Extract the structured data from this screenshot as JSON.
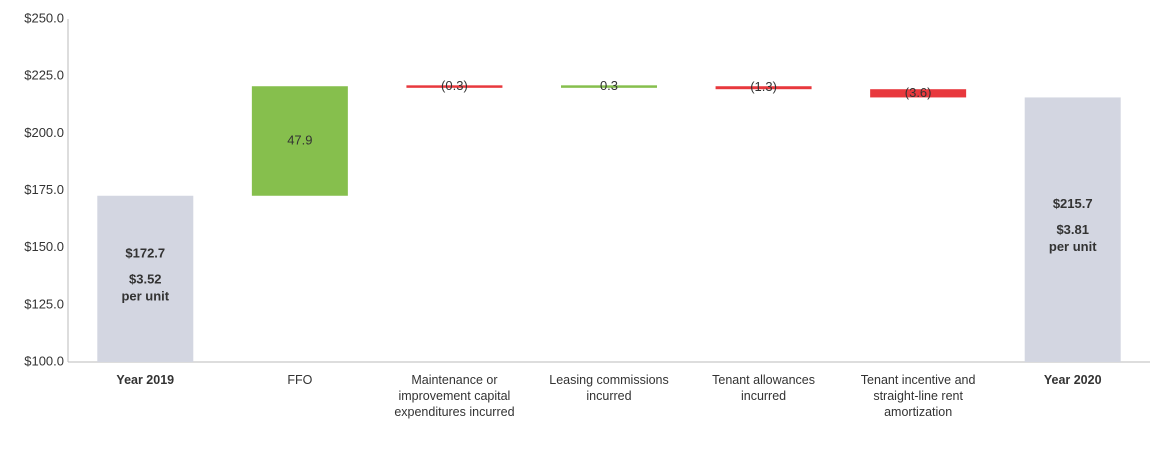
{
  "chart_data": {
    "type": "waterfall",
    "categories": [
      "Year 2019",
      "FFO",
      "Maintenance or improvement capital expenditures incurred",
      "Leasing commissions incurred",
      "Tenant allowances incurred",
      "Tenant incentive and straight-line rent amortization",
      "Year 2020"
    ],
    "kinds": [
      "total",
      "delta",
      "delta",
      "delta",
      "delta",
      "delta",
      "total"
    ],
    "values": [
      172.7,
      47.9,
      -0.3,
      0.3,
      -1.3,
      -3.6,
      215.7
    ],
    "value_labels": [
      "$172.7",
      "47.9",
      "(0.3)",
      "0.3",
      "(1.3)",
      "(3.6)",
      "$215.7"
    ],
    "per_unit_labels": [
      [
        "$3.52",
        "per unit"
      ],
      null,
      null,
      null,
      null,
      null,
      [
        "$3.81",
        "per unit"
      ]
    ],
    "total_color": "#d3d6e1",
    "increase_color": "#86bf4d",
    "decrease_color": "#e8383d",
    "ylim": [
      100,
      250
    ],
    "yticks": [
      {
        "value": 100,
        "label": "$100.0"
      },
      {
        "value": 125,
        "label": "$125.0"
      },
      {
        "value": 150,
        "label": "$150.0"
      },
      {
        "value": 175,
        "label": "$175.0"
      },
      {
        "value": 200,
        "label": "$200.0"
      },
      {
        "value": 225,
        "label": "$225.0"
      },
      {
        "value": 250,
        "label": "$250.0"
      }
    ]
  }
}
